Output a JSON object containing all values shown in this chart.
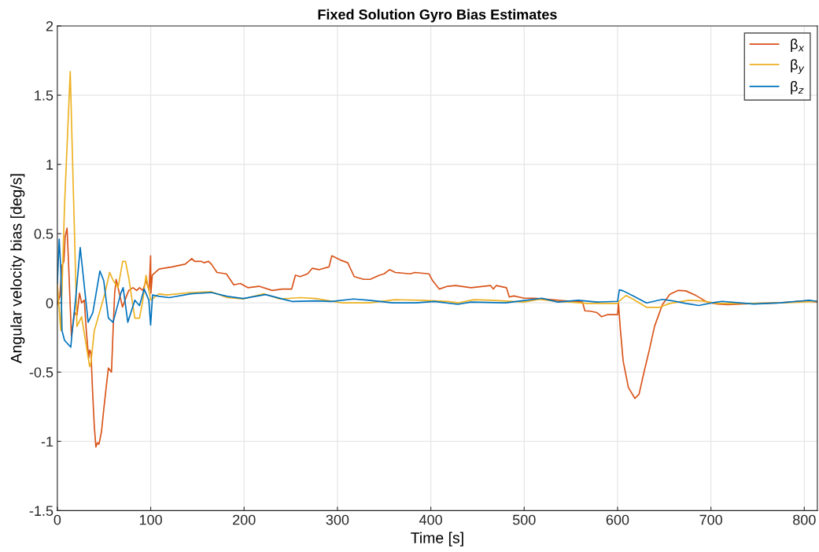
{
  "chart_data": {
    "type": "line",
    "title": "Fixed Solution Gyro Bias Estimates",
    "xlabel": "Time [s]",
    "ylabel": "Angular velocity bias [deg/s]",
    "xlim": [
      0,
      814
    ],
    "ylim": [
      -1.5,
      2
    ],
    "xticks": [
      0,
      100,
      200,
      300,
      400,
      500,
      600,
      700,
      800
    ],
    "yticks": [
      -1.5,
      -1,
      -0.5,
      0,
      0.5,
      1,
      1.5,
      2
    ],
    "grid": true,
    "legend": "top right",
    "series": [
      {
        "name": "β$_{x}$",
        "color": "#d95319",
        "x": [
          0,
          2.7,
          5,
          7,
          8.4,
          10.4,
          11.7,
          15.1,
          18.5,
          21,
          23.8,
          26,
          28.9,
          31,
          33.6,
          34.6,
          36,
          37.9,
          39.6,
          41.3,
          43,
          44.6,
          47.3,
          49.7,
          53,
          54.7,
          58,
          59.7,
          61.4,
          63,
          66.4,
          69.8,
          73,
          76.5,
          81,
          85,
          88,
          91.6,
          95,
          98.3,
          99.9,
          100.2,
          101.7,
          109,
          123,
          137,
          144,
          147,
          154,
          157,
          162,
          165,
          171,
          181,
          189,
          196,
          204,
          216,
          230,
          241,
          251,
          255,
          260,
          268,
          273,
          280,
          291,
          294,
          303,
          311,
          318,
          328,
          335,
          345,
          350,
          356,
          362,
          378,
          383,
          398,
          402,
          409,
          418,
          426.5,
          443,
          464,
          467,
          470,
          481,
          484,
          489,
          500,
          511,
          527,
          544,
          562.5,
          565,
          571,
          578,
          583,
          589,
          600,
          601,
          603,
          606,
          611.6,
          618.6,
          623,
          628,
          634,
          639.6,
          648,
          656,
          665,
          673,
          684,
          696,
          707,
          718,
          746,
          774,
          802,
          814
        ],
        "values": [
          -0.01,
          0.05,
          0.27,
          0.3,
          0.48,
          0.54,
          0.34,
          -0.24,
          -0.07,
          -0.09,
          0.07,
          0,
          0.02,
          -0.2,
          -0.4,
          -0.34,
          -0.36,
          -0.66,
          -0.89,
          -1.04,
          -1.01,
          -1.02,
          -0.93,
          -0.77,
          -0.57,
          -0.47,
          -0.5,
          -0.2,
          0.07,
          0.17,
          0.07,
          -0.03,
          0.03,
          0.09,
          0.11,
          0.09,
          0.11,
          0.09,
          0.16,
          0.09,
          0.34,
          0.07,
          0.2,
          0.245,
          0.26,
          0.28,
          0.32,
          0.3,
          0.3,
          0.29,
          0.3,
          0.28,
          0.22,
          0.21,
          0.13,
          0.14,
          0.11,
          0.12,
          0.09,
          0.1,
          0.1,
          0.2,
          0.19,
          0.21,
          0.25,
          0.24,
          0.26,
          0.34,
          0.31,
          0.29,
          0.19,
          0.17,
          0.17,
          0.2,
          0.21,
          0.24,
          0.22,
          0.21,
          0.22,
          0.21,
          0.16,
          0.1,
          0.12,
          0.125,
          0.11,
          0.125,
          0.1,
          0.125,
          0.11,
          0.043,
          0.05,
          0.034,
          0.034,
          0.025,
          0.015,
          0.006,
          -0.057,
          -0.06,
          -0.07,
          -0.1,
          -0.085,
          -0.085,
          -0.004,
          -0.19,
          -0.42,
          -0.61,
          -0.69,
          -0.66,
          -0.51,
          -0.34,
          -0.17,
          -0.013,
          0.062,
          0.09,
          0.087,
          0.053,
          0.006,
          -0.008,
          -0.013,
          -0.004,
          0,
          0.015,
          0.006
        ]
      },
      {
        "name": "β$_{y}$",
        "color": "#edb120",
        "x": [
          0,
          3.7,
          7.7,
          13.8,
          21,
          26,
          34.6,
          36,
          39.6,
          46,
          51,
          56,
          60,
          65,
          70,
          73,
          76.5,
          83,
          88,
          91.6,
          95,
          96.6,
          100,
          109,
          117,
          143,
          165,
          182,
          199,
          221,
          238,
          260,
          277,
          305,
          334,
          362,
          390,
          418,
          429,
          446,
          466,
          500,
          516,
          536,
          550,
          567,
          600,
          602,
          609,
          617,
          631,
          645,
          656,
          676,
          690,
          707,
          746,
          774,
          814
        ],
        "values": [
          0.14,
          -0.2,
          0.7,
          1.67,
          -0.17,
          -0.1,
          -0.46,
          -0.43,
          -0.2,
          -0.05,
          0.07,
          0.22,
          0.16,
          0.11,
          0.3,
          0.3,
          0.18,
          -0.11,
          -0.11,
          0.02,
          0.2,
          0.14,
          0.02,
          0.066,
          0.057,
          0.075,
          0.08,
          0.038,
          0.028,
          0.066,
          0.028,
          0.038,
          0.032,
          0,
          0,
          0.023,
          0.019,
          0.01,
          0,
          0.023,
          0.019,
          0.006,
          0.025,
          0.01,
          0.006,
          -0.004,
          -0.004,
          0.015,
          0.053,
          0.025,
          -0.032,
          -0.032,
          -0.004,
          0.019,
          0.015,
          -0.004,
          -0.004,
          0,
          0.01
        ]
      },
      {
        "name": "β$_{z}$",
        "color": "#0072bd",
        "x": [
          0,
          2,
          3.7,
          5,
          7.7,
          14.4,
          16,
          19.5,
          24.5,
          28,
          33,
          38,
          45.6,
          49.7,
          54.7,
          59.7,
          68,
          70.5,
          75.5,
          83,
          88,
          93,
          98,
          99.9,
          102,
          109,
          120,
          143,
          165,
          182,
          199,
          223,
          244,
          252,
          277,
          294,
          317,
          334,
          359,
          384,
          404,
          429,
          443,
          480,
          502,
          519,
          536,
          558,
          578,
          600,
          602,
          606,
          617,
          631,
          648,
          659,
          673,
          687,
          701,
          712,
          746,
          774,
          805,
          814
        ],
        "values": [
          0.14,
          0.46,
          0.25,
          -0.2,
          -0.27,
          -0.32,
          -0.2,
          0.02,
          0.4,
          0.18,
          -0.14,
          -0.07,
          0.23,
          0.16,
          -0.11,
          -0.14,
          0.07,
          0.11,
          -0.14,
          0.02,
          -0.02,
          0.1,
          0.02,
          -0.16,
          0.057,
          0.047,
          0.038,
          0.066,
          0.075,
          0.047,
          0.032,
          0.06,
          0.023,
          0.01,
          0.015,
          0.01,
          0.028,
          0.019,
          0,
          0,
          0.01,
          -0.01,
          0.006,
          0,
          0.019,
          0.034,
          0.006,
          0.019,
          0.006,
          0.011,
          0.094,
          0.087,
          0.05,
          0,
          0.025,
          0.015,
          -0.004,
          -0.019,
          0,
          0.011,
          -0.008,
          0,
          0.019,
          0.011
        ]
      }
    ]
  }
}
